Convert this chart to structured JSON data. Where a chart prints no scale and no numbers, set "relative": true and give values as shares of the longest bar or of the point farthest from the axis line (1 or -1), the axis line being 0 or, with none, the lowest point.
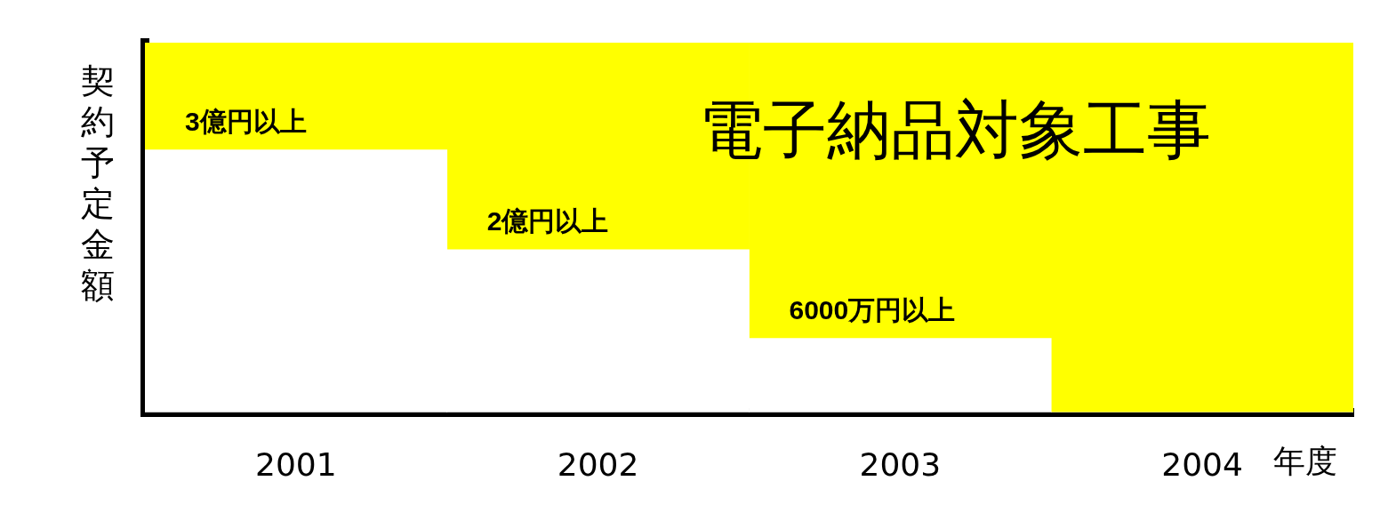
{
  "chart_data": {
    "type": "bar",
    "relative": true,
    "stacked": true,
    "xlabel": "年度",
    "ylabel": "契約予定金額",
    "categories": [
      "2001",
      "2002",
      "2003",
      "2004"
    ],
    "series": [
      {
        "color": "#ffffff",
        "values": [
          0.71,
          0.44,
          0.2,
          0
        ]
      },
      {
        "name": "電子納品対象工事",
        "color": "#ffff00",
        "values": [
          0.29,
          0.56,
          0.8,
          1
        ]
      }
    ],
    "annotations": [
      "3億円以上",
      "2億円以上",
      "6000万円以上"
    ],
    "legend": false,
    "grid": false
  }
}
